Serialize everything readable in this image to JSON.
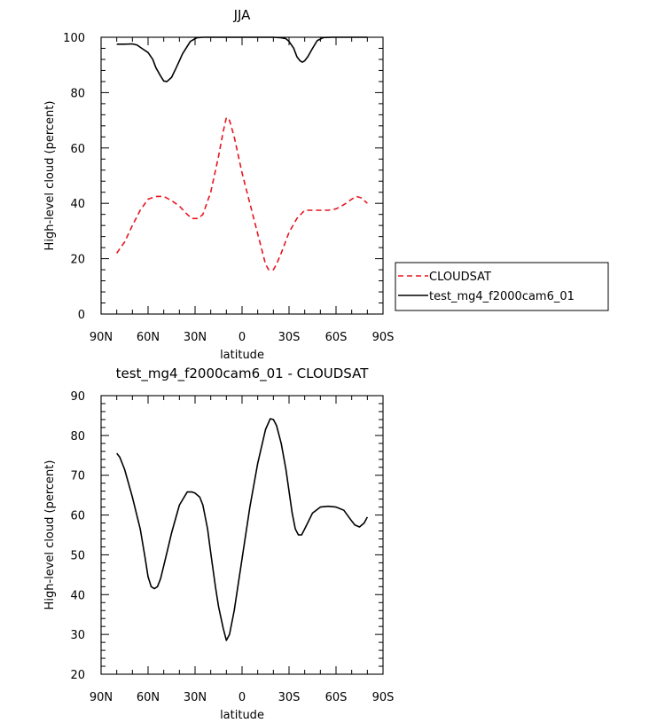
{
  "chart_data": [
    {
      "type": "line",
      "title": "JJA",
      "xlabel": "latitude",
      "ylabel": "High-level cloud (percent)",
      "x_ticks": [
        -90,
        -60,
        -30,
        0,
        30,
        60,
        90
      ],
      "x_tick_labels": [
        "90N",
        "60N",
        "30N",
        "0",
        "30S",
        "60S",
        "90S"
      ],
      "y_ticks": [
        0,
        20,
        40,
        60,
        80,
        100
      ],
      "y_tick_labels": [
        "0",
        "20",
        "40",
        "60",
        "80",
        "100"
      ],
      "xlim": [
        -90,
        90
      ],
      "ylim": [
        0,
        100
      ],
      "grid": false,
      "legend": "outside-right",
      "series": [
        {
          "name": "CLOUDSAT",
          "color": "#e8141e",
          "dash": "dashed",
          "x": [
            -80,
            -75,
            -70,
            -65,
            -60,
            -55,
            -50,
            -45,
            -40,
            -35,
            -32,
            -28,
            -25,
            -20,
            -15,
            -12,
            -10,
            -8,
            -5,
            0,
            5,
            10,
            15,
            17,
            20,
            22,
            25,
            30,
            35,
            40,
            45,
            50,
            55,
            60,
            65,
            70,
            73,
            76,
            80
          ],
          "y": [
            22,
            26,
            32,
            37.5,
            41.5,
            42.5,
            42.5,
            41,
            39,
            36,
            34.5,
            34.5,
            36,
            44,
            57,
            66,
            71,
            70,
            64,
            51,
            40,
            29,
            18,
            16,
            16,
            18,
            22,
            29.5,
            34.5,
            37.5,
            37.5,
            37.5,
            37.5,
            38,
            39.5,
            41.5,
            42.5,
            42,
            40
          ]
        },
        {
          "name": "test_mg4_f2000cam6_01",
          "color": "#000000",
          "dash": "solid",
          "x": [
            -80,
            -75,
            -70,
            -67,
            -64,
            -60,
            -57,
            -55,
            -52,
            -50,
            -48,
            -45,
            -42,
            -38,
            -33,
            -29,
            -25,
            -20,
            -10,
            0,
            10,
            20,
            25,
            28,
            30,
            33,
            35,
            37,
            38.5,
            40,
            42,
            45,
            48,
            52,
            58,
            65,
            75,
            80
          ],
          "y": [
            97.5,
            97.5,
            97.6,
            97.2,
            96,
            94.5,
            92,
            89,
            86,
            84.2,
            84,
            85.5,
            89,
            94,
            98.5,
            99.8,
            100,
            100,
            100,
            100,
            100,
            100,
            99.8,
            99.5,
            98.5,
            96,
            93,
            91.5,
            91,
            91.5,
            93,
            96,
            98.8,
            99.9,
            100,
            100,
            100,
            100
          ]
        }
      ]
    },
    {
      "type": "line",
      "title": "test_mg4_f2000cam6_01 - CLOUDSAT",
      "xlabel": "latitude",
      "ylabel": "High-level cloud (percent)",
      "x_ticks": [
        -90,
        -60,
        -30,
        0,
        30,
        60,
        90
      ],
      "x_tick_labels": [
        "90N",
        "60N",
        "30N",
        "0",
        "30S",
        "60S",
        "90S"
      ],
      "y_ticks": [
        20,
        30,
        40,
        50,
        60,
        70,
        80,
        90
      ],
      "y_tick_labels": [
        "20",
        "30",
        "40",
        "50",
        "60",
        "70",
        "80",
        "90"
      ],
      "xlim": [
        -90,
        90
      ],
      "ylim": [
        20,
        90
      ],
      "grid": false,
      "legend": "none",
      "series": [
        {
          "color": "#000000",
          "dash": "solid",
          "x": [
            -80,
            -78,
            -75,
            -70,
            -65,
            -62,
            -60,
            -58,
            -56,
            -54,
            -52,
            -48,
            -45,
            -40,
            -35,
            -32,
            -30,
            -27,
            -25,
            -22,
            -20,
            -17,
            -15,
            -12,
            -10,
            -8,
            -5,
            0,
            5,
            10,
            15,
            18,
            20,
            22,
            25,
            28,
            30,
            32,
            34,
            36,
            38,
            40,
            45,
            50,
            55,
            60,
            65,
            70,
            72,
            75,
            78,
            80
          ],
          "y": [
            75.5,
            74.5,
            71.5,
            64.5,
            56.5,
            49.5,
            44.5,
            42,
            41.5,
            42,
            44,
            50.5,
            55.5,
            62.5,
            65.8,
            65.8,
            65.5,
            64.5,
            62.5,
            56.5,
            50.5,
            42,
            37,
            31.5,
            28.5,
            30,
            36,
            49,
            62,
            73,
            81.5,
            84.2,
            84,
            82.5,
            78,
            71.5,
            66,
            60.5,
            56.5,
            55,
            55,
            56.5,
            60.5,
            62,
            62.2,
            62,
            61.2,
            58.5,
            57.5,
            57,
            58,
            59.5
          ]
        }
      ]
    }
  ]
}
